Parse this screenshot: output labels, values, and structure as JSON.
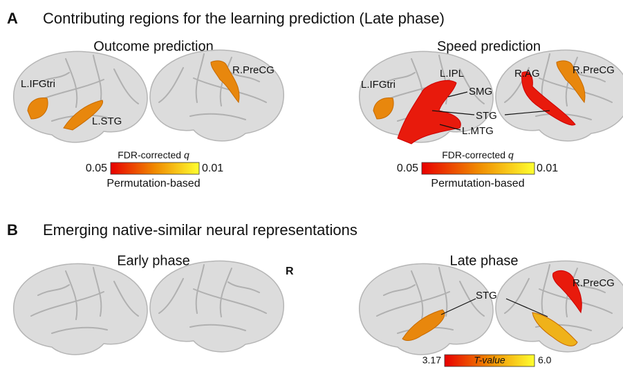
{
  "panel_a": {
    "letter": "A",
    "title": "Contributing regions for the learning prediction (Late phase)",
    "outcome": {
      "title": "Outcome prediction",
      "labels": [
        "L.IFGtri",
        "L.STG",
        "R.PreCG"
      ],
      "colorbar": {
        "label": "FDR-corrected",
        "q": "q",
        "min": "0.05",
        "max": "0.01",
        "caption": "Permutation-based"
      }
    },
    "speed": {
      "title": "Speed prediction",
      "labels": [
        "L.IFGtri",
        "L.IPL",
        "SMG",
        "STG",
        "L.MTG",
        "R.AG",
        "R.PreCG"
      ],
      "colorbar": {
        "label": "FDR-corrected",
        "q": "q",
        "min": "0.05",
        "max": "0.01",
        "caption": "Permutation-based"
      }
    }
  },
  "panel_b": {
    "letter": "B",
    "title": "Emerging native-similar neural representations",
    "early": {
      "title": "Early phase"
    },
    "hemisphere": "R",
    "late": {
      "title": "Late phase",
      "labels": [
        "STG",
        "R.PreCG"
      ],
      "colorbar": {
        "min": "3.17",
        "label": "T-value",
        "max": "6.0"
      }
    }
  }
}
